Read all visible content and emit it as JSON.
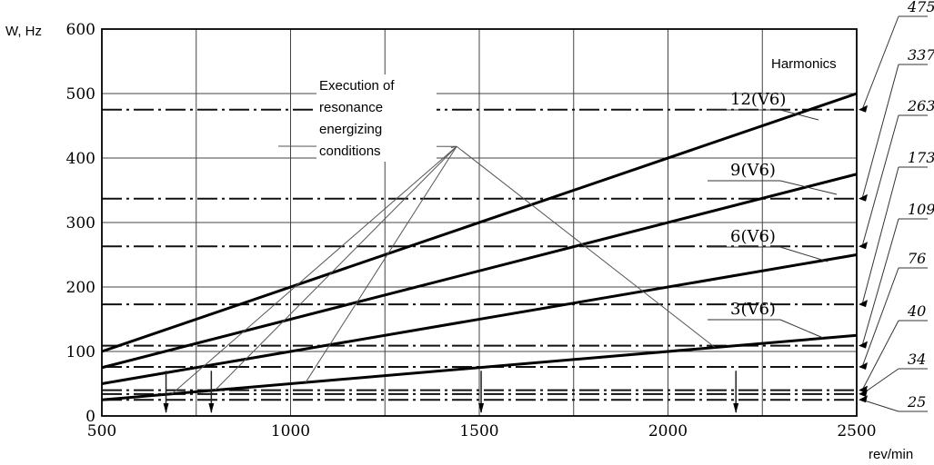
{
  "chart_data": {
    "type": "line",
    "xlabel": "rev/min",
    "ylabel": "W, Hz",
    "xlim": [
      500,
      2500
    ],
    "ylim": [
      0,
      600
    ],
    "x_tick_labels": [
      "500",
      "1000",
      "1500",
      "2000",
      "2500"
    ],
    "y_tick_labels": [
      "0",
      "100",
      "200",
      "300",
      "400",
      "500",
      "600"
    ],
    "x_ticks": [
      500,
      1000,
      1500,
      2000,
      2500
    ],
    "y_ticks": [
      0,
      100,
      200,
      300,
      400,
      500,
      600
    ],
    "x_grid": [
      500,
      750,
      1000,
      1250,
      1500,
      1750,
      2000,
      2250
    ],
    "y_grid": [
      100,
      200,
      300,
      400,
      500
    ],
    "grid": true,
    "series": [
      {
        "name": "3(V6)",
        "x": [
          500,
          2500
        ],
        "y": [
          25,
          125
        ]
      },
      {
        "name": "6(V6)",
        "x": [
          500,
          2500
        ],
        "y": [
          50,
          250
        ]
      },
      {
        "name": "9(V6)",
        "x": [
          500,
          2500
        ],
        "y": [
          75,
          375
        ]
      },
      {
        "name": "12(V6)",
        "x": [
          500,
          2500
        ],
        "y": [
          100,
          500
        ]
      }
    ],
    "harmonics_title": "Harmonics",
    "natural_frequencies": [
      {
        "label": "475",
        "value": 475
      },
      {
        "label": "337",
        "value": 337
      },
      {
        "label": "263",
        "value": 263
      },
      {
        "label": "173",
        "value": 173
      },
      {
        "label": "109",
        "value": 109
      },
      {
        "label": "76",
        "value": 76
      },
      {
        "label": "40",
        "value": 40
      },
      {
        "label": "34",
        "value": 34
      },
      {
        "label": "25",
        "value": 25
      }
    ],
    "annotation": {
      "text_lines": [
        "Execution of",
        "resonance",
        "energizing",
        "conditions"
      ],
      "apex": {
        "x": 1440,
        "y": 418
      },
      "targets": [
        {
          "x": 1040,
          "y": 52
        },
        {
          "x": 1425,
          "y": 416
        },
        {
          "x": 2125,
          "y": 106
        },
        {
          "x": 685,
          "y": 34
        },
        {
          "x": 800,
          "y": 40
        }
      ]
    },
    "resonance_points_x": [
      670,
      790,
      1505,
      2180
    ]
  }
}
